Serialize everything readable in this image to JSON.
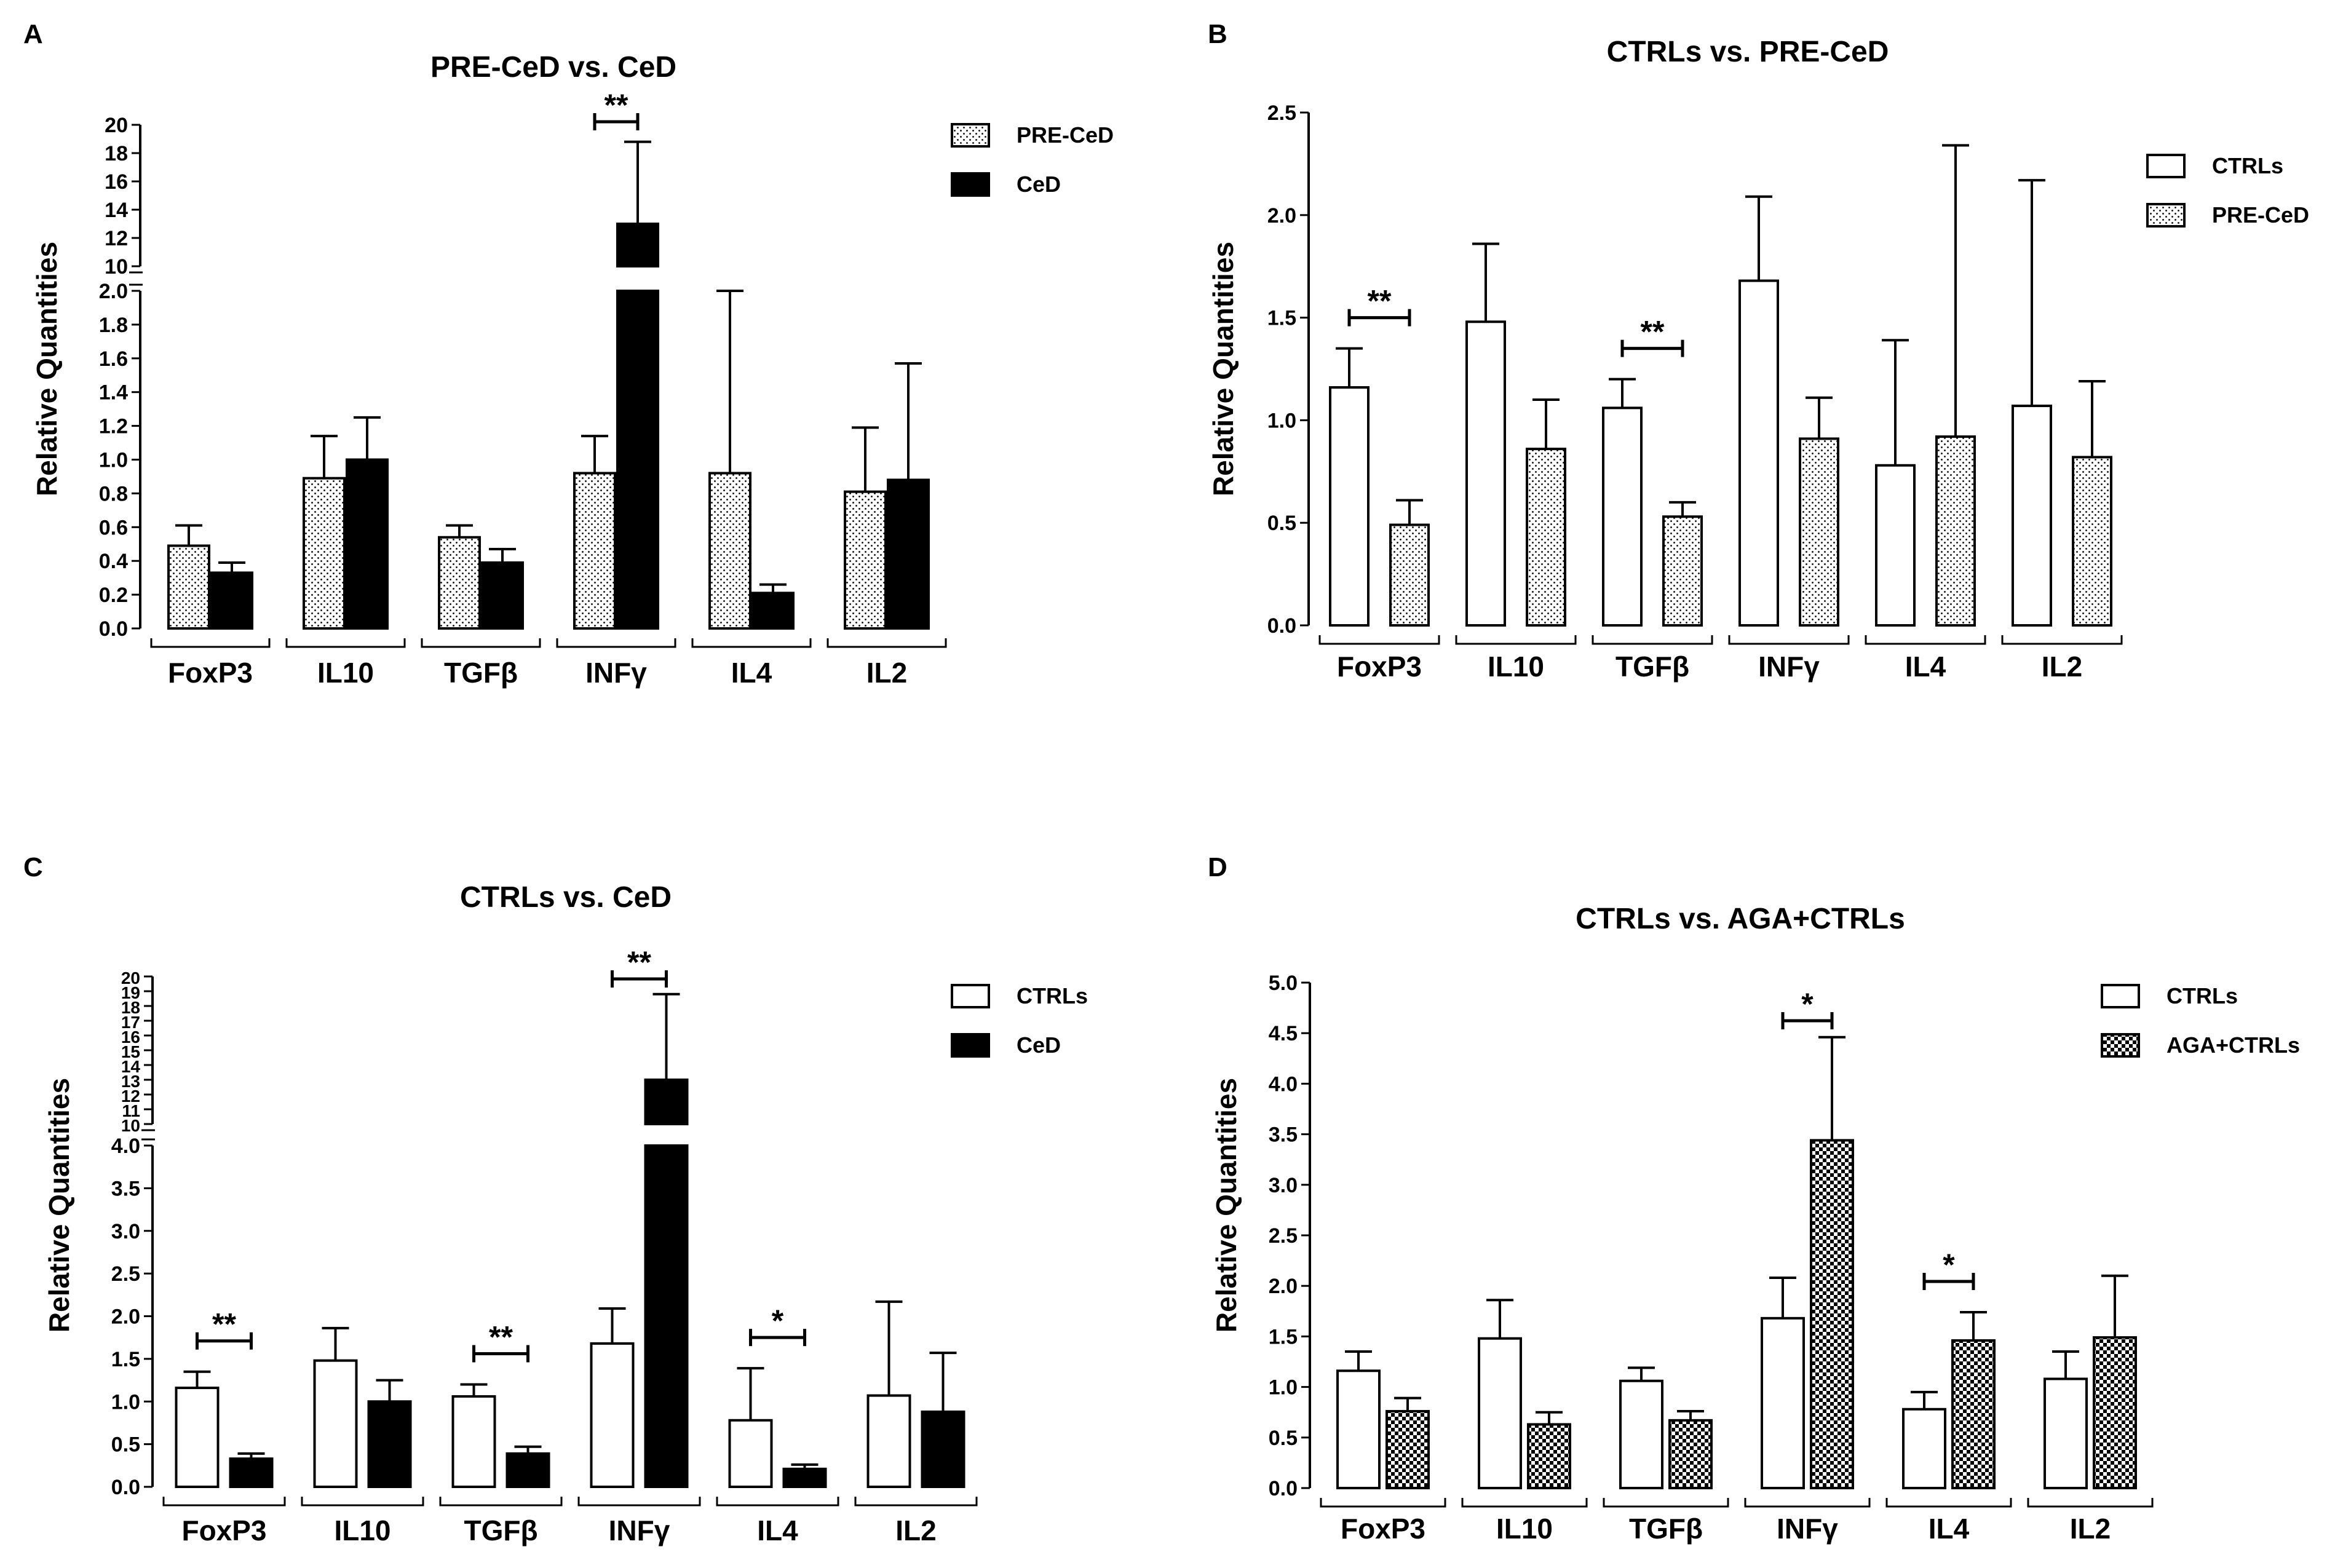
{
  "colors": {
    "ink": "#000000",
    "open": "#ffffff",
    "solid": "#000000"
  },
  "chart_data": [
    {
      "panel": "A",
      "type": "bar",
      "title": "PRE-CeD vs. CeD",
      "ylabel": "Relative Quantities",
      "categories": [
        "FoxP3",
        "IL10",
        "TGFβ",
        "INFγ",
        "IL4",
        "IL2"
      ],
      "broken_axis": {
        "lower": [
          0,
          2.0
        ],
        "lower_ticks": [
          "0.0",
          "0.2",
          "0.4",
          "0.6",
          "0.8",
          "1.0",
          "1.2",
          "1.4",
          "1.6",
          "1.8",
          "2.0"
        ],
        "upper": [
          10,
          20
        ],
        "upper_ticks": [
          "10",
          "12",
          "14",
          "16",
          "18",
          "20"
        ]
      },
      "legend_position": "top-right",
      "series": [
        {
          "name": "PRE-CeD",
          "fill": "dotted",
          "values": [
            0.49,
            0.89,
            0.54,
            0.92,
            0.92,
            0.81
          ],
          "errors": [
            0.12,
            0.25,
            0.07,
            0.22,
            1.08,
            0.38
          ]
        },
        {
          "name": "CeD",
          "fill": "solid",
          "values": [
            0.33,
            1.0,
            0.39,
            13.0,
            0.21,
            0.88
          ],
          "errors": [
            0.06,
            0.25,
            0.08,
            5.8,
            0.05,
            0.69
          ]
        }
      ],
      "significance": [
        {
          "category": "INFγ",
          "label": "**"
        }
      ]
    },
    {
      "panel": "B",
      "type": "bar",
      "title": "CTRLs vs. PRE-CeD",
      "ylabel": "Relative Quantities",
      "categories": [
        "FoxP3",
        "IL10",
        "TGFβ",
        "INFγ",
        "IL4",
        "IL2"
      ],
      "ylim": [
        0,
        2.5
      ],
      "yticks": [
        "0.0",
        "0.5",
        "1.0",
        "1.5",
        "2.0",
        "2.5"
      ],
      "legend_position": "top-right",
      "series": [
        {
          "name": "CTRLs",
          "fill": "open",
          "values": [
            1.16,
            1.48,
            1.06,
            1.68,
            0.78,
            1.07
          ],
          "errors": [
            0.19,
            0.38,
            0.14,
            0.41,
            0.61,
            1.1
          ]
        },
        {
          "name": "PRE-CeD",
          "fill": "dotted",
          "values": [
            0.49,
            0.86,
            0.53,
            0.91,
            0.92,
            0.82
          ],
          "errors": [
            0.12,
            0.24,
            0.07,
            0.2,
            1.42,
            0.37
          ]
        }
      ],
      "significance": [
        {
          "category": "FoxP3",
          "label": "**"
        },
        {
          "category": "TGFβ",
          "label": "**"
        }
      ]
    },
    {
      "panel": "C",
      "type": "bar",
      "title": "CTRLs vs. CeD",
      "ylabel": "Relative Quantities",
      "categories": [
        "FoxP3",
        "IL10",
        "TGFβ",
        "INFγ",
        "IL4",
        "IL2"
      ],
      "broken_axis": {
        "lower": [
          0,
          4.0
        ],
        "lower_ticks": [
          "0.0",
          "0.5",
          "1.0",
          "1.5",
          "2.0",
          "2.5",
          "3.0",
          "3.5",
          "4.0"
        ],
        "upper": [
          10,
          20
        ],
        "upper_ticks": [
          "10",
          "11",
          "12",
          "13",
          "14",
          "15",
          "16",
          "17",
          "18",
          "19",
          "20"
        ]
      },
      "legend_position": "top-right",
      "series": [
        {
          "name": "CTRLs",
          "fill": "open",
          "values": [
            1.16,
            1.48,
            1.06,
            1.68,
            0.78,
            1.07
          ],
          "errors": [
            0.19,
            0.38,
            0.14,
            0.41,
            0.61,
            1.1
          ]
        },
        {
          "name": "CeD",
          "fill": "solid",
          "values": [
            0.33,
            1.0,
            0.39,
            13.0,
            0.21,
            0.88
          ],
          "errors": [
            0.06,
            0.25,
            0.08,
            5.8,
            0.05,
            0.69
          ]
        }
      ],
      "significance": [
        {
          "category": "FoxP3",
          "label": "**"
        },
        {
          "category": "TGFβ",
          "label": "**"
        },
        {
          "category": "INFγ",
          "label": "**"
        },
        {
          "category": "IL4",
          "label": "*"
        }
      ]
    },
    {
      "panel": "D",
      "type": "bar",
      "title": "CTRLs vs. AGA+CTRLs",
      "ylabel": "Relative Quantities",
      "categories": [
        "FoxP3",
        "IL10",
        "TGFβ",
        "INFγ",
        "IL4",
        "IL2"
      ],
      "ylim": [
        0,
        5.0
      ],
      "yticks": [
        "0.0",
        "0.5",
        "1.0",
        "1.5",
        "2.0",
        "2.5",
        "3.0",
        "3.5",
        "4.0",
        "4.5",
        "5.0"
      ],
      "legend_position": "top-right",
      "series": [
        {
          "name": "CTRLs",
          "fill": "open",
          "values": [
            1.16,
            1.48,
            1.06,
            1.68,
            0.78,
            1.08
          ],
          "errors": [
            0.19,
            0.38,
            0.13,
            0.4,
            0.17,
            0.27
          ]
        },
        {
          "name": "AGA+CTRLs",
          "fill": "checker",
          "values": [
            0.76,
            0.63,
            0.67,
            3.44,
            1.46,
            1.49
          ],
          "errors": [
            0.13,
            0.12,
            0.09,
            1.02,
            0.28,
            0.61
          ]
        }
      ],
      "significance": [
        {
          "category": "INFγ",
          "label": "*"
        },
        {
          "category": "IL4",
          "label": "*"
        }
      ]
    }
  ]
}
